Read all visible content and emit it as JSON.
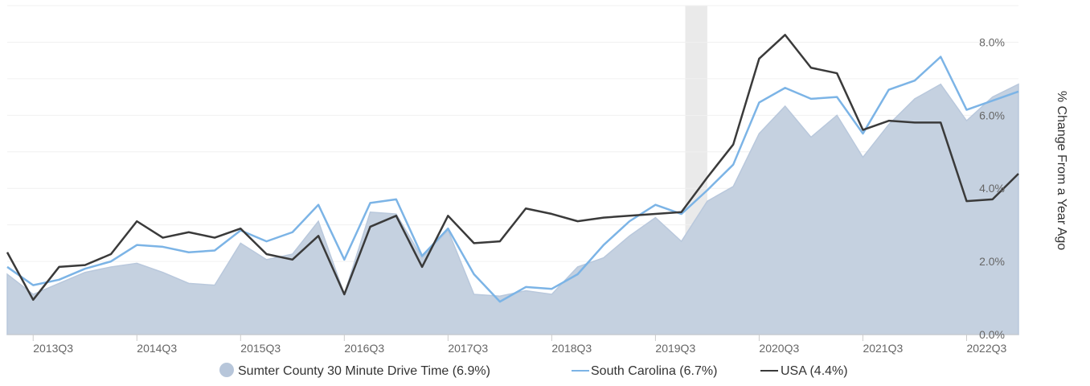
{
  "chart_data": {
    "type": "area",
    "y_axis": {
      "label": "% Change From a Year Ago",
      "ticks": [
        "0.0%",
        "2.0%",
        "4.0%",
        "6.0%",
        "8.0%"
      ],
      "range": [
        0,
        9
      ],
      "position": "right"
    },
    "x_tick_labels": [
      "2013Q3",
      "2014Q3",
      "2015Q3",
      "2016Q3",
      "2017Q3",
      "2018Q3",
      "2019Q3",
      "2020Q3",
      "2021Q3",
      "2022Q3"
    ],
    "x": [
      "2013Q2",
      "2013Q3",
      "2013Q4",
      "2014Q1",
      "2014Q2",
      "2014Q3",
      "2014Q4",
      "2015Q1",
      "2015Q2",
      "2015Q3",
      "2015Q4",
      "2016Q1",
      "2016Q2",
      "2016Q3",
      "2016Q4",
      "2017Q1",
      "2017Q2",
      "2017Q3",
      "2017Q4",
      "2018Q1",
      "2018Q2",
      "2018Q3",
      "2018Q4",
      "2019Q1",
      "2019Q2",
      "2019Q3",
      "2019Q4",
      "2020Q1",
      "2020Q2",
      "2020Q3",
      "2020Q4",
      "2021Q1",
      "2021Q2",
      "2021Q3",
      "2021Q4",
      "2022Q1",
      "2022Q2",
      "2022Q3",
      "2022Q4",
      "2023Q1"
    ],
    "recession_band": {
      "start": "2019Q4",
      "end": "2020Q1"
    },
    "series": [
      {
        "name": "Sumter County 30 Minute Drive Time (6.9%)",
        "kind": "area",
        "color": "#c5d1e0",
        "values": [
          1.65,
          1.1,
          1.4,
          1.7,
          1.85,
          1.95,
          1.7,
          1.4,
          1.35,
          2.5,
          2.05,
          2.2,
          3.1,
          1.1,
          3.35,
          3.3,
          2.1,
          2.85,
          1.1,
          1.05,
          1.2,
          1.1,
          1.85,
          2.1,
          2.7,
          3.2,
          2.55,
          3.65,
          4.05,
          5.5,
          6.25,
          5.4,
          6.0,
          4.85,
          5.75,
          6.45,
          6.85,
          5.85,
          6.5,
          6.85
        ]
      },
      {
        "name": "South Carolina (6.7%)",
        "kind": "line",
        "color": "#7cb4e6",
        "values": [
          1.85,
          1.35,
          1.5,
          1.8,
          2.0,
          2.45,
          2.4,
          2.25,
          2.3,
          2.85,
          2.55,
          2.8,
          3.55,
          2.05,
          3.6,
          3.7,
          2.15,
          2.9,
          1.65,
          0.9,
          1.3,
          1.25,
          1.65,
          2.45,
          3.1,
          3.55,
          3.3,
          3.95,
          4.65,
          6.35,
          6.75,
          6.45,
          6.5,
          5.5,
          6.7,
          6.95,
          7.6,
          6.15,
          6.4,
          6.65
        ]
      },
      {
        "name": "USA (4.4%)",
        "kind": "line",
        "color": "#3a3a3a",
        "values": [
          2.25,
          0.95,
          1.85,
          1.9,
          2.2,
          3.1,
          2.65,
          2.8,
          2.65,
          2.9,
          2.2,
          2.05,
          2.7,
          1.1,
          2.95,
          3.25,
          1.85,
          3.25,
          2.5,
          2.55,
          3.45,
          3.3,
          3.1,
          3.2,
          3.25,
          3.3,
          3.35,
          4.3,
          5.2,
          7.55,
          8.2,
          7.3,
          7.15,
          5.6,
          5.85,
          5.8,
          5.8,
          3.65,
          3.7,
          4.4
        ]
      }
    ],
    "grid": true,
    "legend_position": "bottom"
  }
}
